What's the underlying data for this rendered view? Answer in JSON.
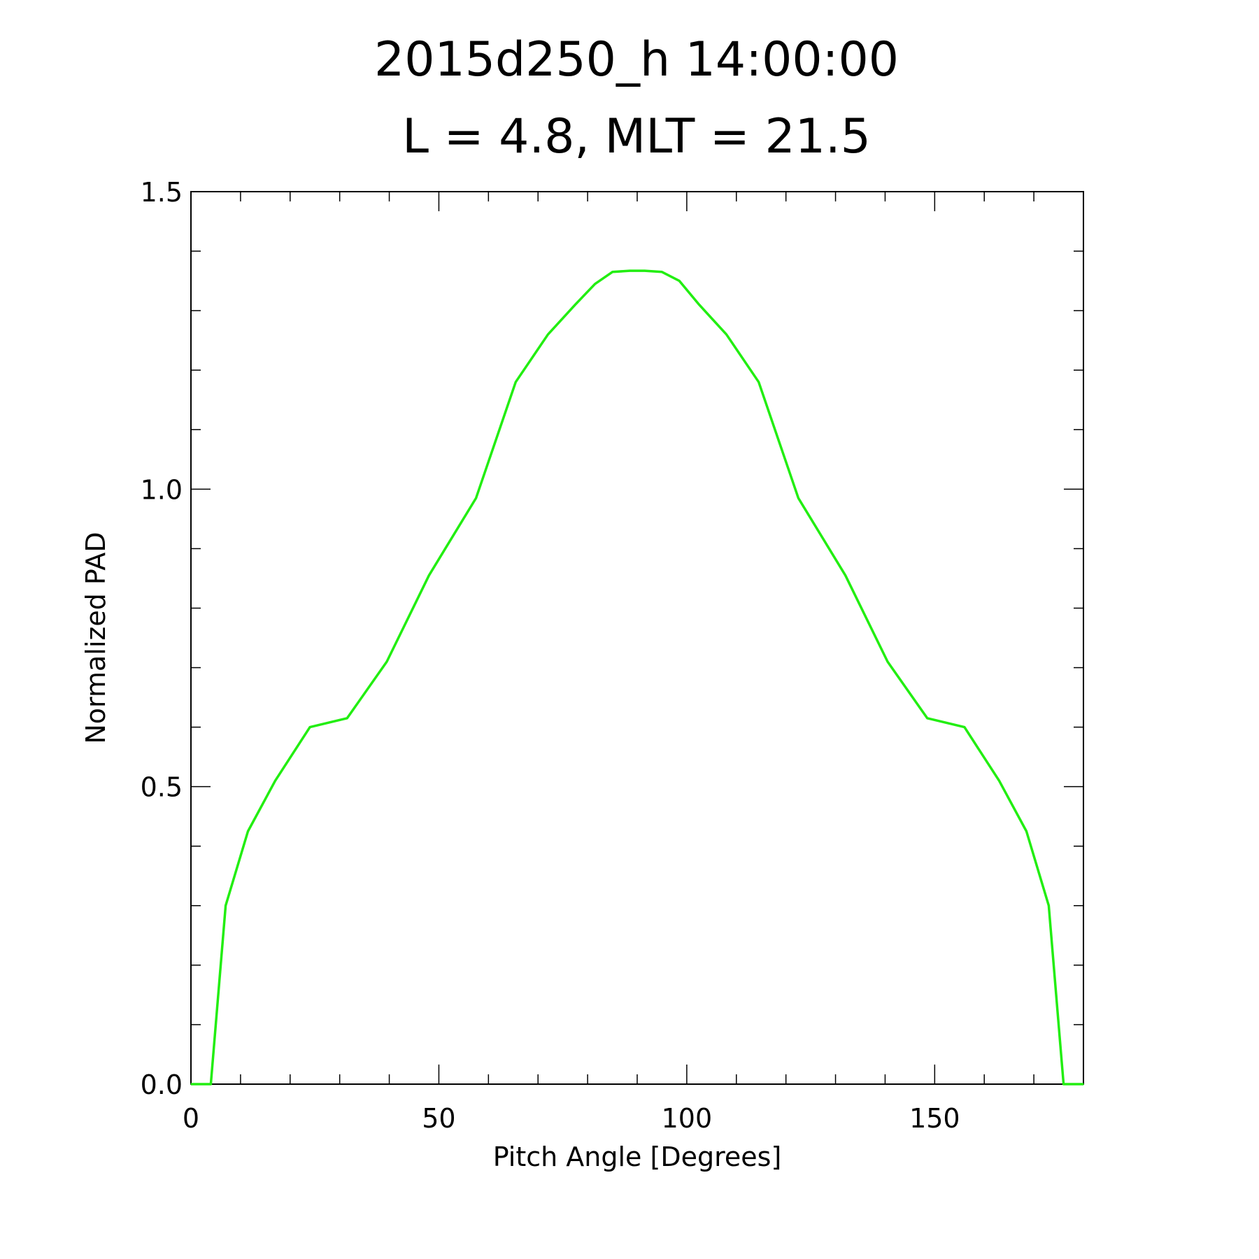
{
  "chart_data": {
    "type": "line",
    "title": "2015d250_h   14:00:00",
    "subtitle": "L = 4.8, MLT = 21.5",
    "xlabel": "Pitch Angle [Degrees]",
    "ylabel": "Normalized PAD",
    "xlim": [
      0,
      180
    ],
    "ylim": [
      0,
      1.5
    ],
    "xticks": [
      0,
      50,
      100,
      150
    ],
    "xtick_labels": [
      "0",
      "50",
      "100",
      "150"
    ],
    "yticks": [
      0,
      0.5,
      1.0,
      1.5
    ],
    "ytick_labels": [
      "0.0",
      "0.5",
      "1.0",
      "1.5"
    ],
    "x_minor_step": 10,
    "y_minor_step": 0.1,
    "grid": false,
    "series": [
      {
        "color": "#22ee11",
        "x": [
          0,
          4,
          7,
          11.5,
          17,
          24,
          31.5,
          39.5,
          48,
          57.5,
          65.5,
          72,
          77.5,
          81.5,
          85,
          88.5,
          91.5,
          95,
          98.5,
          102.5,
          108,
          114.5,
          122.5,
          132,
          140.5,
          148.5,
          156,
          163,
          168.5,
          173,
          176,
          180
        ],
        "y": [
          0,
          0.0,
          0.3,
          0.425,
          0.51,
          0.6,
          0.615,
          0.71,
          0.855,
          0.985,
          1.18,
          1.26,
          1.31,
          1.345,
          1.365,
          1.367,
          1.367,
          1.365,
          1.35,
          1.31,
          1.26,
          1.18,
          0.985,
          0.855,
          0.71,
          0.615,
          0.6,
          0.51,
          0.425,
          0.3,
          0.0,
          0
        ]
      }
    ]
  }
}
